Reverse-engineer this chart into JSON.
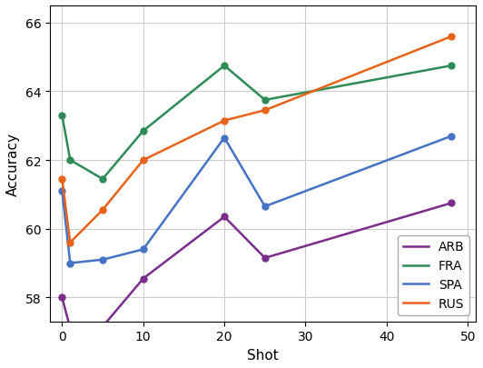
{
  "title": "",
  "xlabel": "Shot",
  "ylabel": "Accuracy",
  "xlim": [
    -1.5,
    51
  ],
  "ylim": [
    57.3,
    66.5
  ],
  "yticks": [
    58,
    60,
    62,
    64,
    66
  ],
  "xticks": [
    0,
    10,
    20,
    30,
    40,
    50
  ],
  "series": {
    "ARB": {
      "x": [
        0,
        1,
        5,
        10,
        20,
        25,
        48
      ],
      "y": [
        58.0,
        57.1,
        57.15,
        58.55,
        60.35,
        59.15,
        60.75
      ],
      "color": "#7B2D8B",
      "marker": "o"
    },
    "FRA": {
      "x": [
        0,
        1,
        5,
        10,
        20,
        25,
        48
      ],
      "y": [
        63.3,
        62.0,
        61.45,
        62.85,
        64.75,
        63.75,
        64.75
      ],
      "color": "#2E8B57",
      "marker": "o"
    },
    "SPA": {
      "x": [
        0,
        1,
        5,
        10,
        20,
        25,
        48
      ],
      "y": [
        61.1,
        59.0,
        59.1,
        59.4,
        62.65,
        60.65,
        62.7
      ],
      "color": "#4472C4",
      "marker": "o"
    },
    "RUS": {
      "x": [
        0,
        1,
        5,
        10,
        20,
        25,
        48
      ],
      "y": [
        61.45,
        59.6,
        60.55,
        62.0,
        63.15,
        63.45,
        65.6
      ],
      "color": "#E8631A",
      "marker": "o"
    }
  },
  "legend_order": [
    "ARB",
    "FRA",
    "SPA",
    "RUS"
  ],
  "grid": true,
  "background_color": "#ffffff"
}
